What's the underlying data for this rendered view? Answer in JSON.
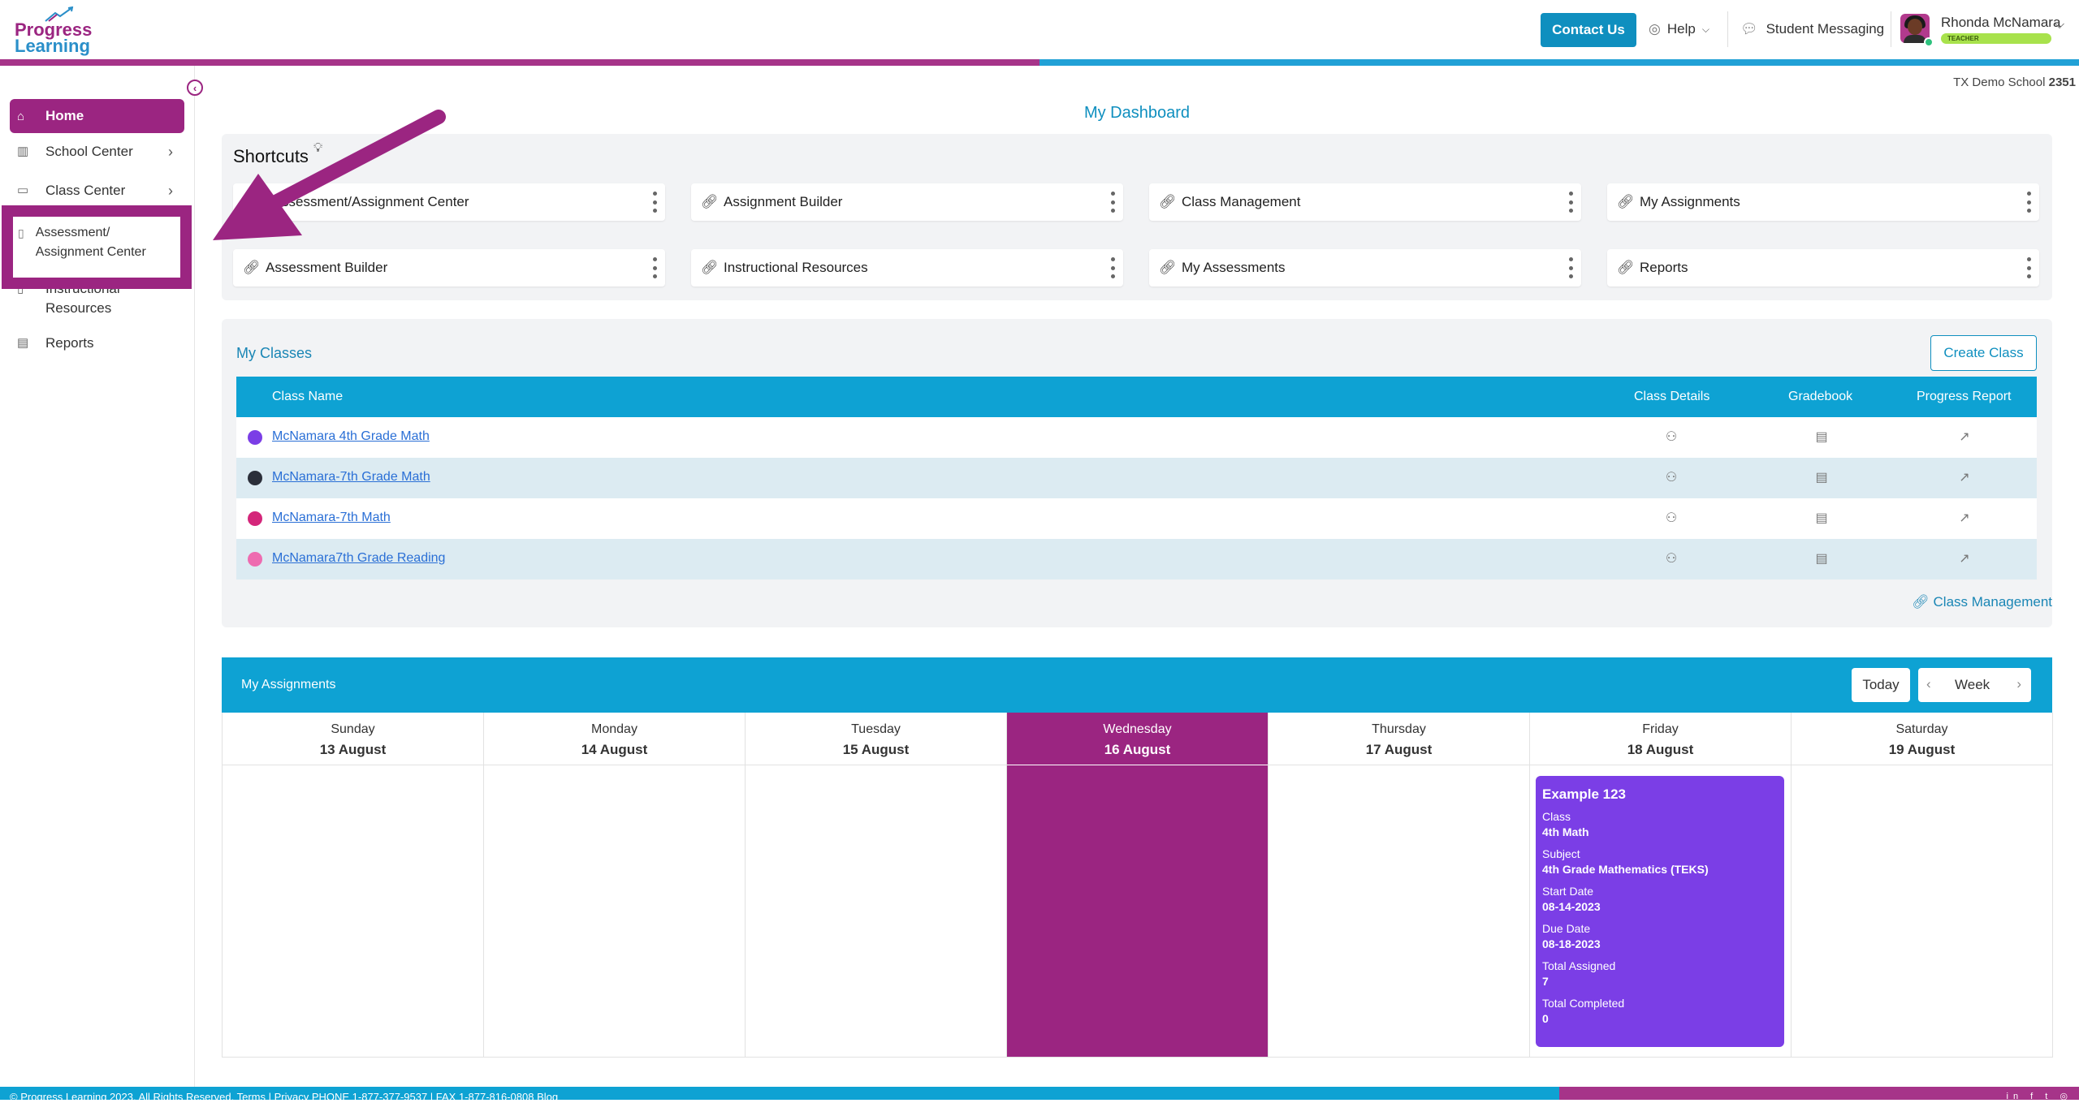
{
  "header": {
    "logo_line1": "Progress",
    "logo_line2": "Learning",
    "contact_label": "Contact Us",
    "help_label": "Help",
    "messaging_label": "Student Messaging",
    "user_name": "Rhonda McNamara",
    "user_role": "TEACHER"
  },
  "sidebar": {
    "items": [
      {
        "label": "Home",
        "icon": "home-icon"
      },
      {
        "label": "School Center",
        "icon": "building-icon"
      },
      {
        "label": "Class Center",
        "icon": "desk-icon"
      },
      {
        "label": "Assessment/ Assignment Center",
        "icon": "book-icon"
      },
      {
        "label": "Instructional Resources",
        "icon": "book-icon"
      },
      {
        "label": "Reports",
        "icon": "report-icon"
      }
    ],
    "highlight_line1": "Assessment/",
    "highlight_line2": "Assignment Center",
    "instr_line1": "Instructional",
    "instr_line2": "Resources"
  },
  "school": {
    "name": "TX Demo School",
    "number": "2351"
  },
  "dashboard_title": "My Dashboard",
  "shortcuts": {
    "title": "Shortcuts",
    "items": [
      "ssessment/Assignment Center",
      "Assignment Builder",
      "Class Management",
      "My Assignments",
      "Assessment Builder",
      "Instructional Resources",
      "My Assessments",
      "Reports"
    ]
  },
  "classes": {
    "title": "My Classes",
    "create_label": "Create Class",
    "columns": [
      "Class Name",
      "Class Details",
      "Gradebook",
      "Progress Report"
    ],
    "rows": [
      {
        "name": "McNamara 4th Grade Math",
        "color": "#7b3ee6"
      },
      {
        "name": "McNamara-7th Grade Math",
        "color": "#2b2f3a"
      },
      {
        "name": "McNamara-7th Math",
        "color": "#d4267a"
      },
      {
        "name": "McNamara7th Grade Reading",
        "color": "#ee6bb0"
      }
    ],
    "management_link": "Class Management"
  },
  "calendar": {
    "title": "My Assignments",
    "today_label": "Today",
    "view_label": "Week",
    "days": [
      {
        "name": "Sunday",
        "date": "13 August"
      },
      {
        "name": "Monday",
        "date": "14 August"
      },
      {
        "name": "Tuesday",
        "date": "15 August"
      },
      {
        "name": "Wednesday",
        "date": "16 August"
      },
      {
        "name": "Thursday",
        "date": "17 August"
      },
      {
        "name": "Friday",
        "date": "18 August"
      },
      {
        "name": "Saturday",
        "date": "19 August"
      }
    ],
    "active_day": "Wednesday",
    "event": {
      "title": "Example 123",
      "class_label": "Class",
      "class_value": "4th Math",
      "subject_label": "Subject",
      "subject_value": "4th Grade Mathematics (TEKS)",
      "start_label": "Start Date",
      "start_value": "08-14-2023",
      "due_label": "Due Date",
      "due_value": "08-18-2023",
      "assigned_label": "Total Assigned",
      "assigned_value": "7",
      "completed_label": "Total Completed",
      "completed_value": "0"
    }
  },
  "footer": {
    "text": "© Progress Learning 2023. All Rights Reserved.   Terms   |   Privacy   PHONE 1-877-377-9537   |   FAX 1-877-816-0808   Blog"
  },
  "colors": {
    "brand_purple": "#9b2581",
    "brand_blue": "#0ea2d3",
    "event_purple": "#7b3ee6"
  }
}
